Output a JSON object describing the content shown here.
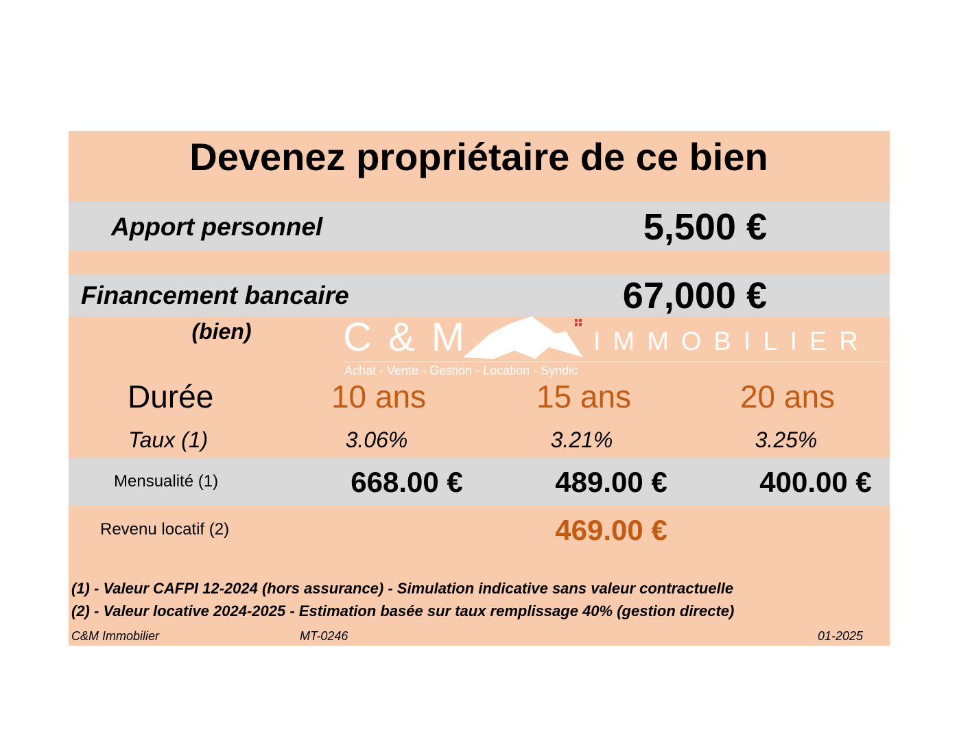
{
  "title": "Devenez propriétaire de ce bien",
  "apport": {
    "label": "Apport personnel",
    "value": "5,500 €"
  },
  "financement": {
    "label": "Financement bancaire",
    "sublabel": "(bien)",
    "value": "67,000 €"
  },
  "duree": {
    "label": "Durée",
    "options": [
      "10 ans",
      "15 ans",
      "20 ans"
    ]
  },
  "taux": {
    "label": "Taux (1)",
    "values": [
      "3.06%",
      "3.21%",
      "3.25%"
    ]
  },
  "mensualite": {
    "label": "Mensualité (1)",
    "values": [
      "668.00 €",
      "489.00 €",
      "400.00 €"
    ]
  },
  "revenu": {
    "label": "Revenu locatif (2)",
    "value": "469.00 €"
  },
  "notes": [
    "(1) - Valeur CAFPI 12-2024 (hors assurance) - Simulation indicative sans valeur contractuelle",
    "(2) - Valeur locative 2024-2025 - Estimation basée sur taux remplissage 40% (gestion directe)"
  ],
  "footer": {
    "company": "C&M Immobilier",
    "reference": "MT-0246",
    "date": "01-2025"
  },
  "logo": {
    "brand": "C & M",
    "word": "IMMOBILIER",
    "tagline": "Achat - Vente - Gestion - Location - Syndic"
  },
  "colors": {
    "peach": "#f8cbad",
    "gray": "#d9d9d9",
    "accent": "#c55a11"
  }
}
